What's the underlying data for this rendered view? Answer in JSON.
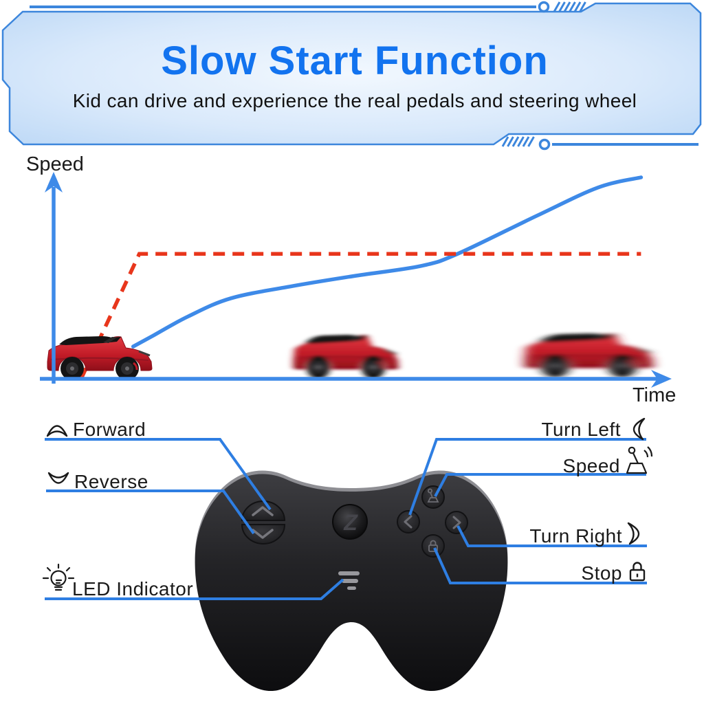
{
  "banner": {
    "title": "Slow Start Function",
    "subtitle": "Kid can drive and experience the real pedals and steering wheel"
  },
  "chart_data": {
    "type": "line",
    "title": "Slow Start Function speed curve",
    "xlabel": "Time",
    "ylabel": "Speed",
    "x_range": [
      0,
      100
    ],
    "y_range": [
      0,
      100
    ],
    "axes_unlabeled": true,
    "grid": false,
    "legend": "none",
    "series": [
      {
        "name": "slow-start-speed",
        "color": "#3e8ae8",
        "line_style": "solid",
        "x": [
          13,
          16,
          22,
          29,
          39,
          49,
          60,
          66,
          79,
          89,
          96
        ],
        "y": [
          16,
          21,
          31,
          40,
          46,
          51,
          56,
          62,
          81,
          95,
          100
        ]
      },
      {
        "name": "instant-start-speed",
        "color": "#e8361c",
        "line_style": "dashed",
        "x": [
          4.5,
          14,
          96
        ],
        "y": [
          0,
          62,
          62
        ]
      }
    ],
    "annotations": [
      {
        "name": "ride-on-car-at-start",
        "appearance": "sharp",
        "x_pct": 16
      },
      {
        "name": "ride-on-car-accelerating",
        "appearance": "motion-blur",
        "x_pct": 55
      },
      {
        "name": "ride-on-car-at-speed",
        "appearance": "motion-blur",
        "x_pct": 93
      }
    ]
  },
  "controller": {
    "logo": "Z",
    "buttons": [
      "forward",
      "reverse",
      "power-logo",
      "speed",
      "turn-left",
      "turn-right",
      "stop",
      "led-indicator"
    ]
  },
  "callouts": {
    "forward": "Forward",
    "reverse": "Reverse",
    "turn_left": "Turn Left",
    "speed": "Speed",
    "turn_right": "Turn Right",
    "stop": "Stop",
    "led": "LED Indicator"
  },
  "colors": {
    "accent_blue": "#2e7ee2",
    "curve_blue": "#3e8ae8",
    "dash_red": "#e8361c",
    "title_blue": "#1273ef",
    "banner_border": "#3c86dc",
    "label_ink": "#1a1a1a"
  }
}
